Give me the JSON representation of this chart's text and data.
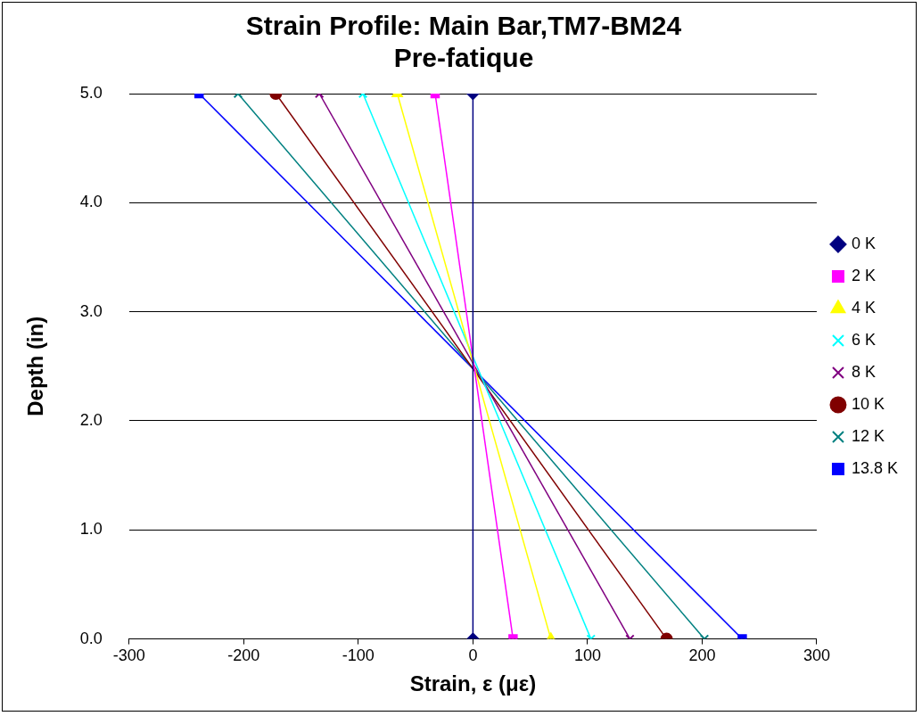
{
  "chart_data": {
    "type": "line",
    "title": "Strain Profile: Main Bar,TM7-BM24",
    "subtitle": "Pre-fatique",
    "xlabel": "Strain, ε (με)",
    "ylabel": "Depth (in)",
    "xlim": [
      -300,
      300
    ],
    "xticks": [
      -300,
      -200,
      -100,
      0,
      100,
      200,
      300
    ],
    "ylim": [
      0,
      5
    ],
    "yticks": [
      {
        "value": 0,
        "label": "0.0"
      },
      {
        "value": 1,
        "label": "1.0"
      },
      {
        "value": 2,
        "label": "2.0"
      },
      {
        "value": 3,
        "label": "3.0"
      },
      {
        "value": 4,
        "label": "4.0"
      },
      {
        "value": 5,
        "label": "5.0"
      }
    ],
    "grid": "y",
    "legend": "right",
    "series": [
      {
        "name": "0 K",
        "color": "#000080",
        "marker": "diamond",
        "x": [
          0,
          0
        ],
        "values": [
          5,
          0
        ]
      },
      {
        "name": "2 K",
        "color": "#ff00ff",
        "marker": "square",
        "x": [
          -33,
          35
        ],
        "values": [
          5,
          0
        ]
      },
      {
        "name": "4 K",
        "color": "#ffff00",
        "marker": "triangle",
        "x": [
          -66,
          68
        ],
        "values": [
          5,
          0
        ]
      },
      {
        "name": "6 K",
        "color": "#00ffff",
        "marker": "cross",
        "x": [
          -96,
          103
        ],
        "values": [
          5,
          0
        ]
      },
      {
        "name": "8 K",
        "color": "#800080",
        "marker": "cross",
        "x": [
          -134,
          137
        ],
        "values": [
          5,
          0
        ]
      },
      {
        "name": "10 K",
        "color": "#800000",
        "marker": "circle",
        "x": [
          -172,
          169
        ],
        "values": [
          5,
          0
        ]
      },
      {
        "name": "12 K",
        "color": "#008080",
        "marker": "cross",
        "x": [
          -205,
          202
        ],
        "values": [
          5,
          0
        ]
      },
      {
        "name": "13.8 K",
        "color": "#0000ff",
        "marker": "square",
        "x": [
          -239,
          235
        ],
        "values": [
          5,
          0
        ]
      }
    ]
  }
}
